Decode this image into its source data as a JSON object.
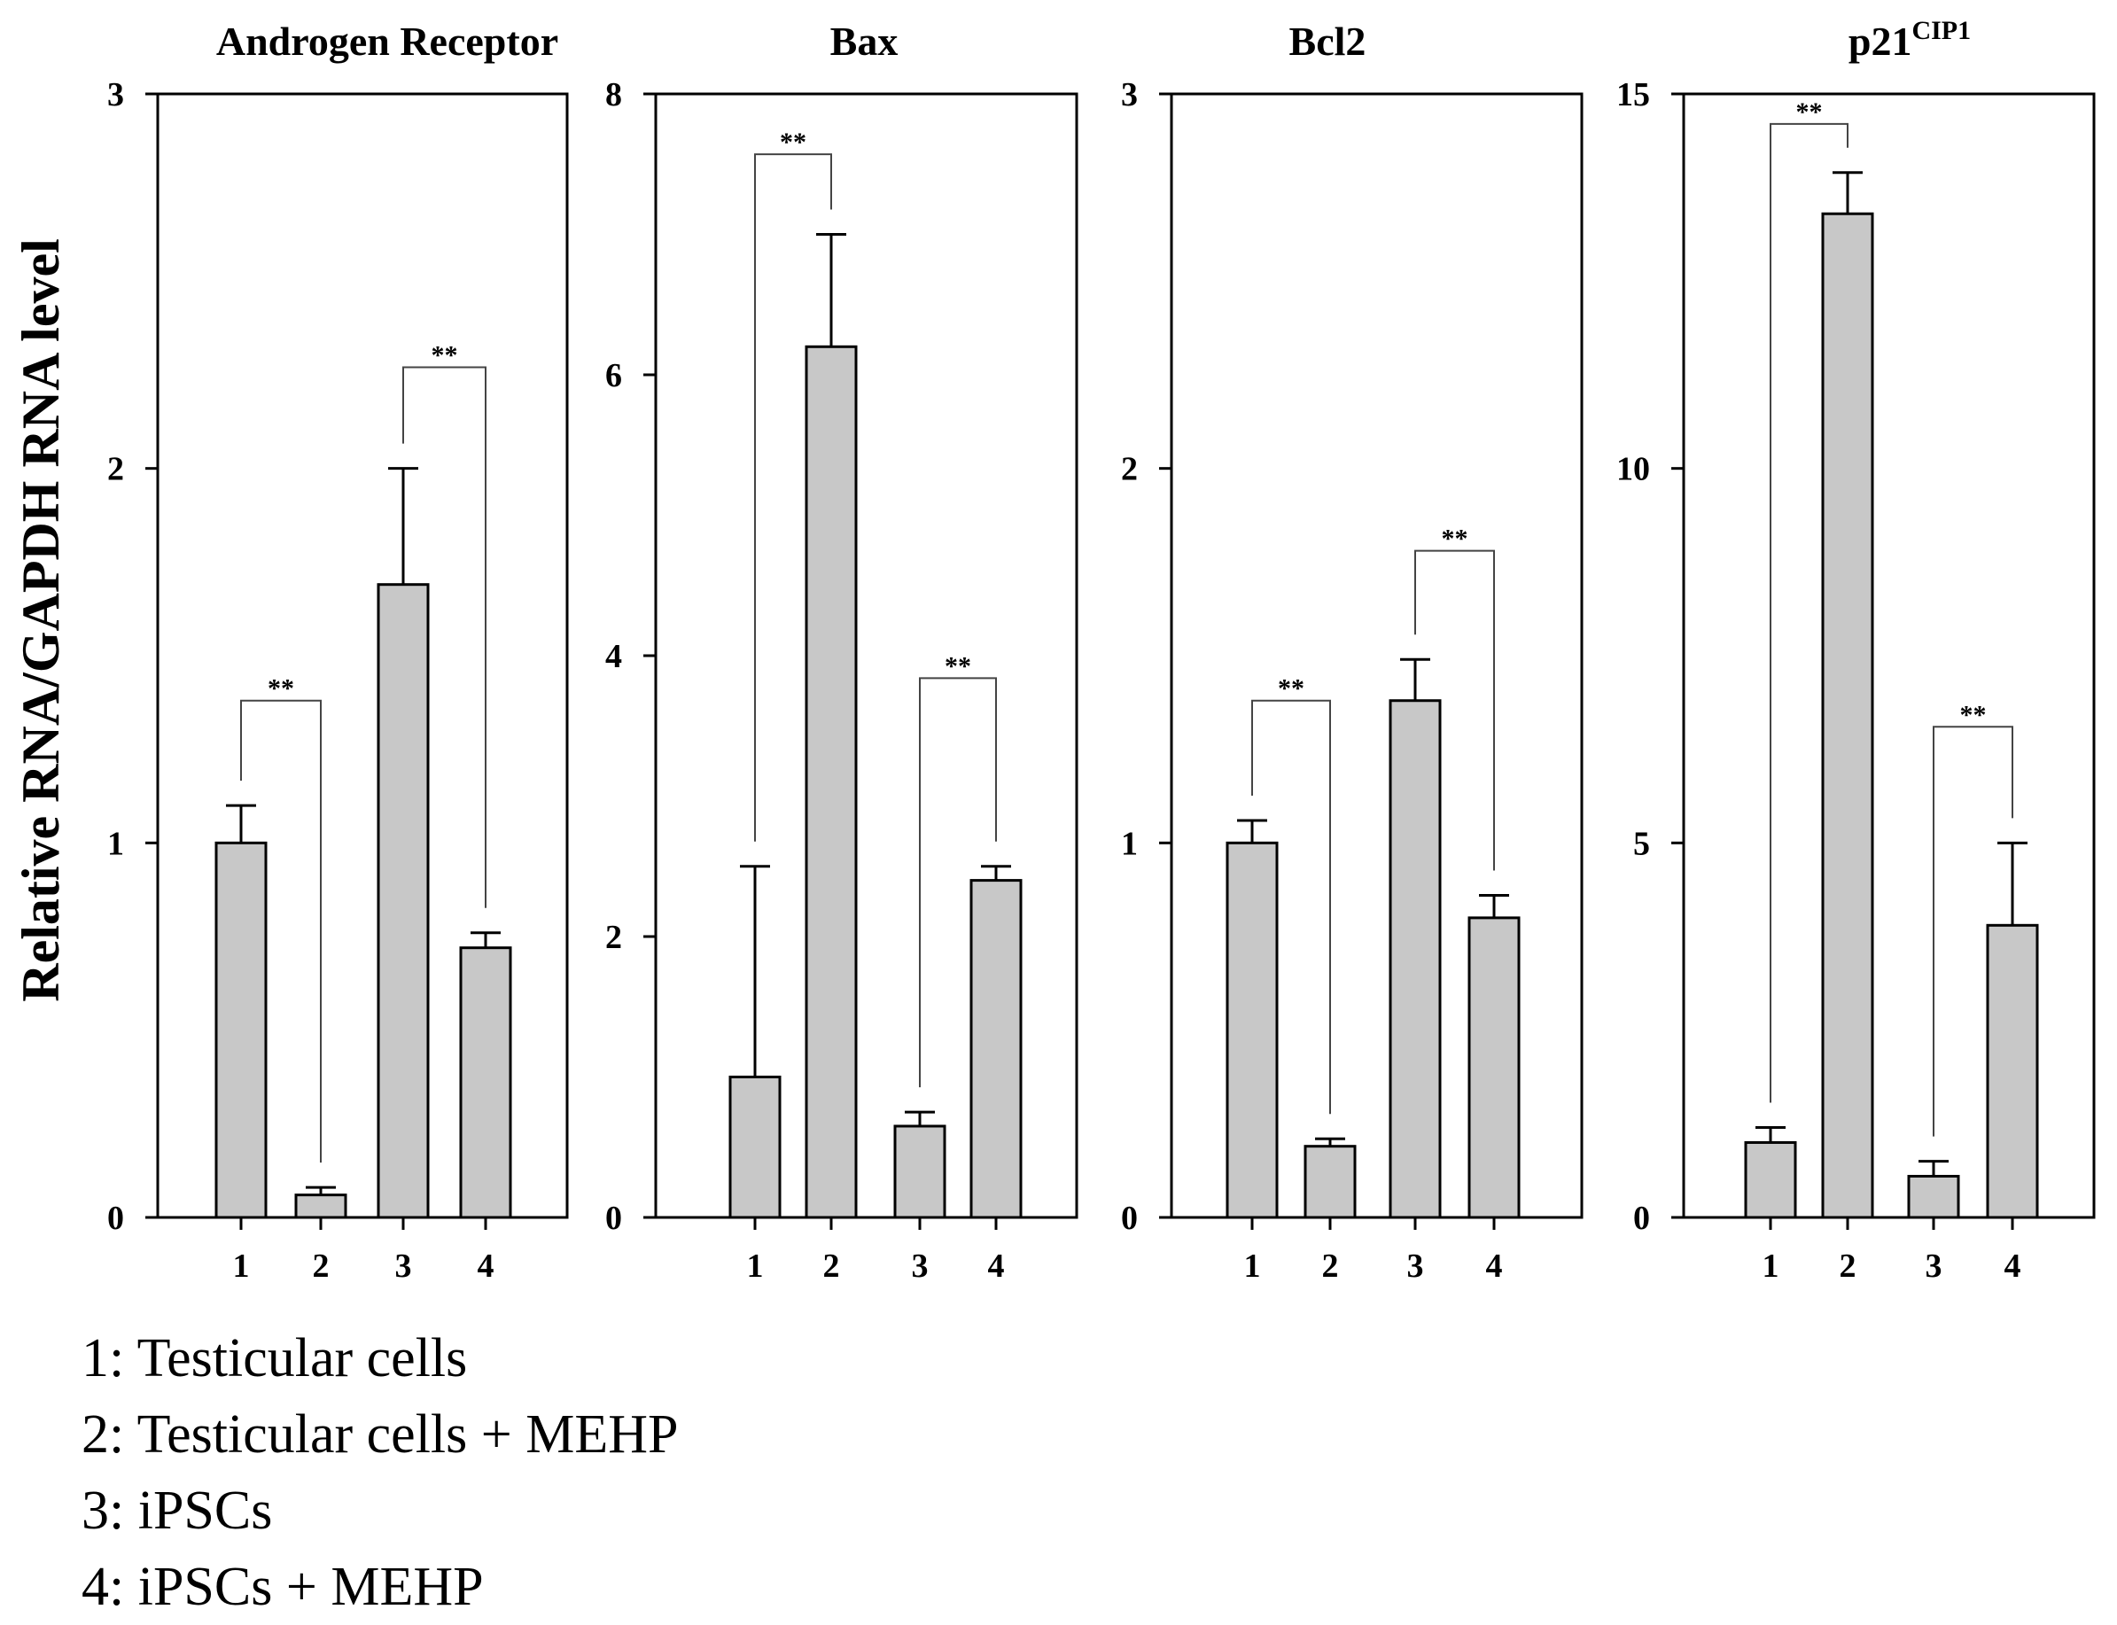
{
  "chart_data": {
    "type": "bar",
    "ylabel": "Relative RNA/GAPDH RNA level",
    "categories": [
      "1",
      "2",
      "3",
      "4"
    ],
    "panels": [
      {
        "title": "Androgen Receptor",
        "title_sup": "",
        "ylim": [
          0,
          3
        ],
        "yticks": [
          "0",
          "1",
          "2",
          "3"
        ],
        "values": [
          1.0,
          0.06,
          1.69,
          0.72
        ],
        "errors": [
          0.1,
          0.02,
          0.31,
          0.04
        ],
        "significance": [
          {
            "a": 1,
            "b": 2,
            "label": "**",
            "level": 1.38
          },
          {
            "a": 3,
            "b": 4,
            "label": "**",
            "level": 2.27
          }
        ]
      },
      {
        "title": "Bax",
        "title_sup": "",
        "ylim": [
          0,
          8
        ],
        "yticks": [
          "0",
          "2",
          "4",
          "6",
          "8"
        ],
        "values": [
          1.0,
          6.2,
          0.65,
          2.4
        ],
        "errors": [
          1.5,
          0.8,
          0.1,
          0.1
        ],
        "significance": [
          {
            "a": 1,
            "b": 2,
            "label": "**",
            "level": 7.57
          },
          {
            "a": 3,
            "b": 4,
            "label": "**",
            "level": 3.84
          }
        ]
      },
      {
        "title": "Bcl2",
        "title_sup": "",
        "ylim": [
          0,
          3
        ],
        "yticks": [
          "0",
          "1",
          "2",
          "3"
        ],
        "values": [
          1.0,
          0.19,
          1.38,
          0.8
        ],
        "errors": [
          0.06,
          0.02,
          0.11,
          0.06
        ],
        "significance": [
          {
            "a": 1,
            "b": 2,
            "label": "**",
            "level": 1.38
          },
          {
            "a": 3,
            "b": 4,
            "label": "**",
            "level": 1.78
          }
        ]
      },
      {
        "title": "p21",
        "title_sup": "CIP1",
        "ylim": [
          0,
          15
        ],
        "yticks": [
          "0",
          "5",
          "10",
          "15"
        ],
        "values": [
          1.0,
          13.4,
          0.55,
          3.9
        ],
        "errors": [
          0.2,
          0.55,
          0.2,
          1.1
        ],
        "significance": [
          {
            "a": 1,
            "b": 2,
            "label": "**",
            "level": 14.6
          },
          {
            "a": 3,
            "b": 4,
            "label": "**",
            "level": 6.55
          }
        ]
      }
    ],
    "colors": {
      "bar_fill": "#c8c8c8",
      "stroke": "#000000"
    }
  },
  "legend": [
    "1: Testicular cells",
    "2: Testicular cells + MEHP",
    "3: iPSCs",
    "4: iPSCs + MEHP"
  ]
}
